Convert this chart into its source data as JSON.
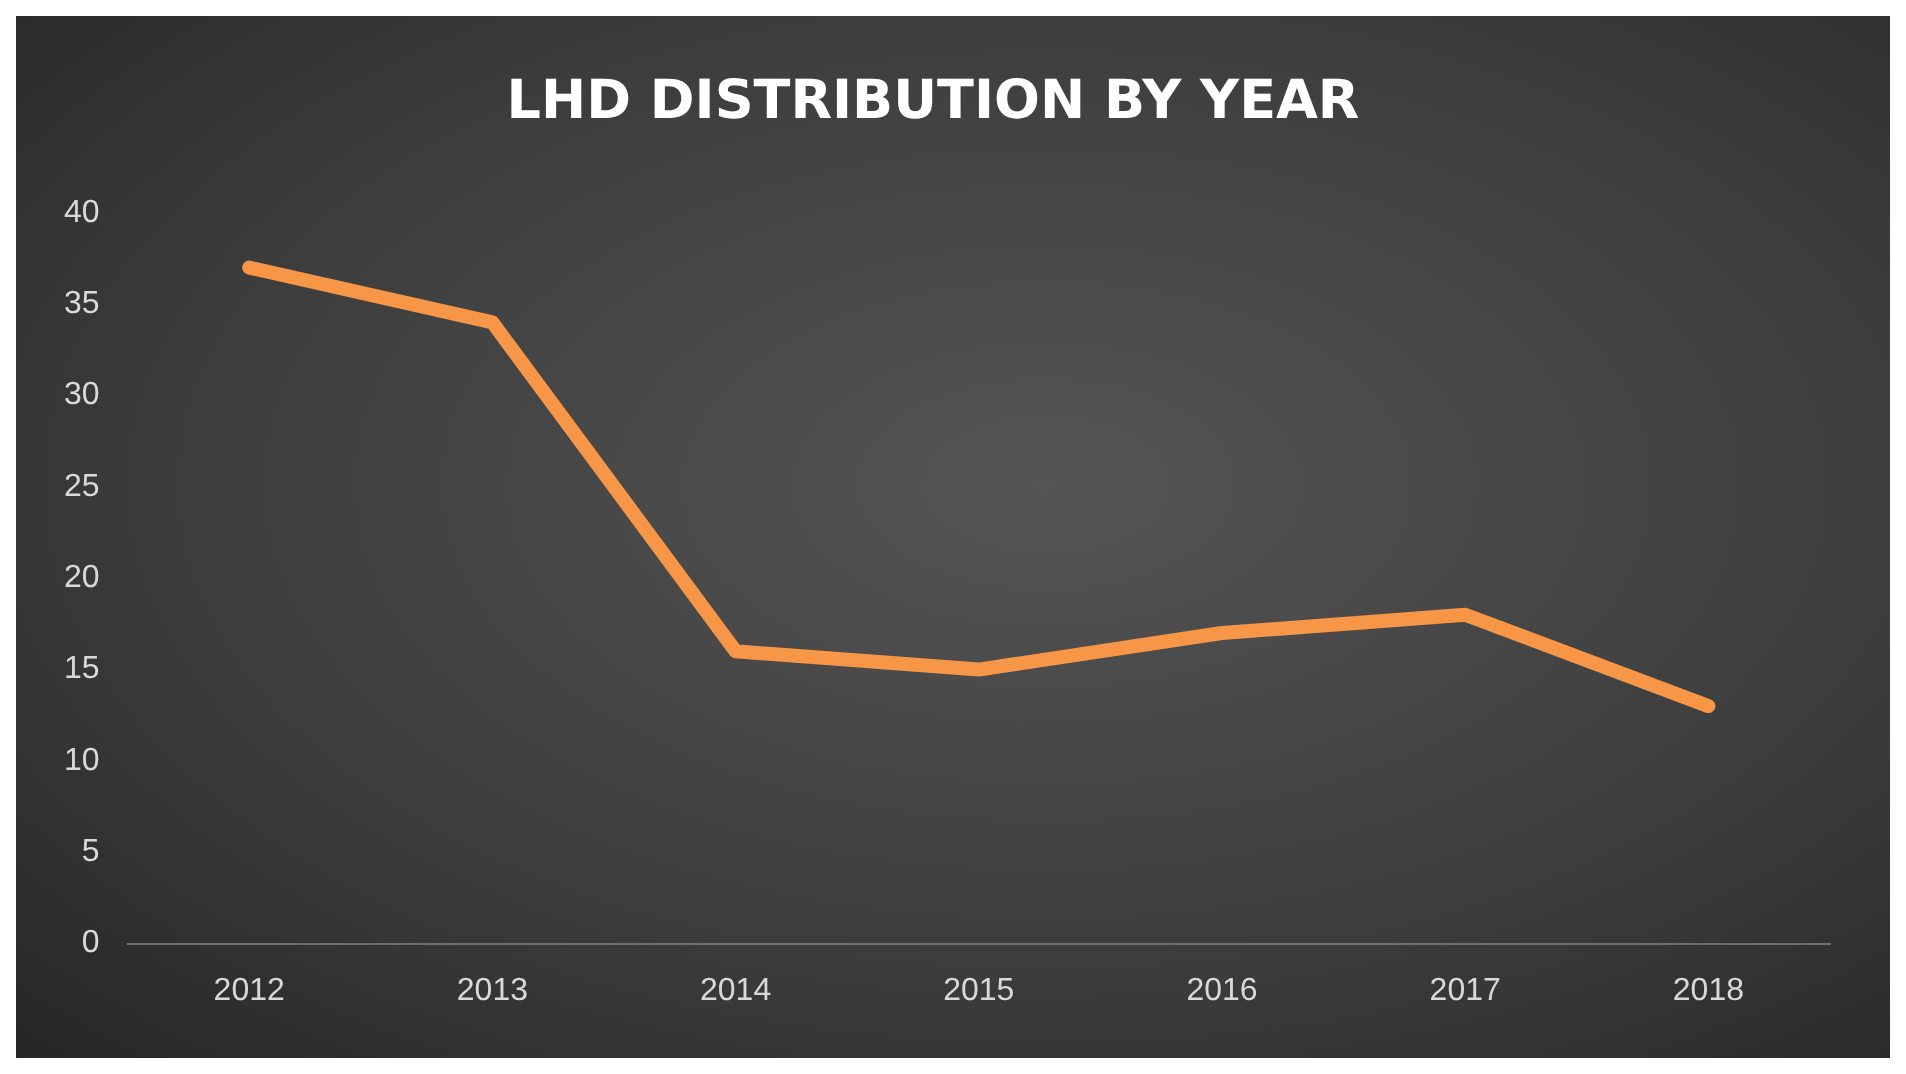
{
  "chart_data": {
    "type": "line",
    "title": "LHD DISTRIBUTION BY YEAR",
    "categories": [
      "2012",
      "2013",
      "2014",
      "2015",
      "2016",
      "2017",
      "2018"
    ],
    "series": [
      {
        "color": "#f79646",
        "values": [
          37,
          34,
          16,
          15,
          17,
          18,
          13
        ]
      }
    ],
    "ylim": [
      0,
      40
    ],
    "yticks": [
      0,
      5,
      10,
      15,
      20,
      25,
      30,
      35,
      40
    ],
    "grid": false,
    "legend": false,
    "marker": "none",
    "line_style": "solid"
  }
}
